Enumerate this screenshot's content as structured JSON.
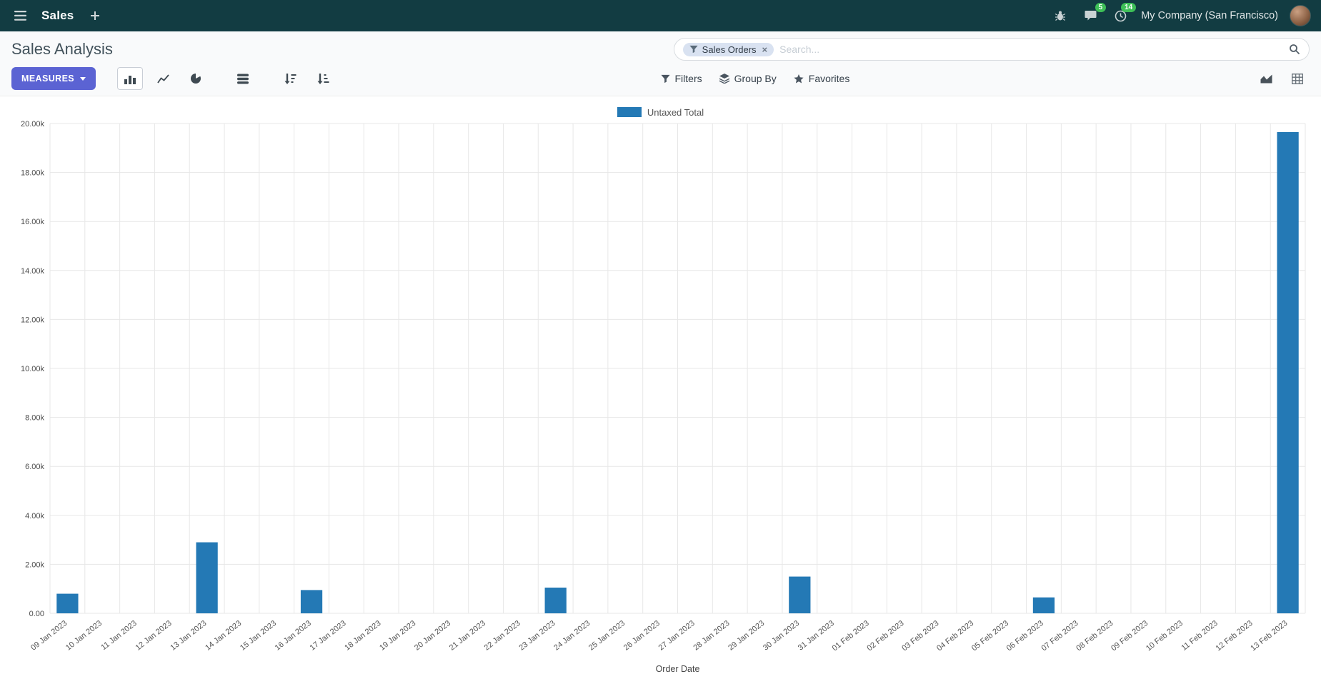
{
  "colors": {
    "navbar": "#123c42",
    "primary": "#5b63d3",
    "bar": "#2479b5",
    "badge": "#3dbf57"
  },
  "navbar": {
    "app_name": "Sales",
    "company": "My Company (San Francisco)",
    "badges": {
      "messages": "5",
      "activities": "14"
    }
  },
  "control_panel": {
    "title": "Sales Analysis",
    "search": {
      "facet": "Sales Orders",
      "remove": "×",
      "placeholder": "Search..."
    },
    "measures_label": "MEASURES",
    "buttons": {
      "filters": "Filters",
      "group_by": "Group By",
      "favorites": "Favorites"
    }
  },
  "chart_data": {
    "type": "bar",
    "title": "",
    "xlabel": "Order Date",
    "ylabel": "",
    "ylim": [
      0,
      20000
    ],
    "y_tick_step": 2000,
    "legend_position": "top-center",
    "grid": true,
    "categories": [
      "09 Jan 2023",
      "10 Jan 2023",
      "11 Jan 2023",
      "12 Jan 2023",
      "13 Jan 2023",
      "14 Jan 2023",
      "15 Jan 2023",
      "16 Jan 2023",
      "17 Jan 2023",
      "18 Jan 2023",
      "19 Jan 2023",
      "20 Jan 2023",
      "21 Jan 2023",
      "22 Jan 2023",
      "23 Jan 2023",
      "24 Jan 2023",
      "25 Jan 2023",
      "26 Jan 2023",
      "27 Jan 2023",
      "28 Jan 2023",
      "29 Jan 2023",
      "30 Jan 2023",
      "31 Jan 2023",
      "01 Feb 2023",
      "02 Feb 2023",
      "03 Feb 2023",
      "04 Feb 2023",
      "05 Feb 2023",
      "06 Feb 2023",
      "07 Feb 2023",
      "08 Feb 2023",
      "09 Feb 2023",
      "10 Feb 2023",
      "11 Feb 2023",
      "12 Feb 2023",
      "13 Feb 2023"
    ],
    "series": [
      {
        "name": "Untaxed Total",
        "color": "#2479b5",
        "values": [
          800,
          0,
          0,
          0,
          2900,
          0,
          0,
          950,
          0,
          0,
          0,
          0,
          0,
          0,
          1050,
          0,
          0,
          0,
          0,
          0,
          0,
          1500,
          0,
          0,
          0,
          0,
          0,
          0,
          650,
          0,
          0,
          0,
          0,
          0,
          0,
          19650
        ]
      }
    ]
  }
}
